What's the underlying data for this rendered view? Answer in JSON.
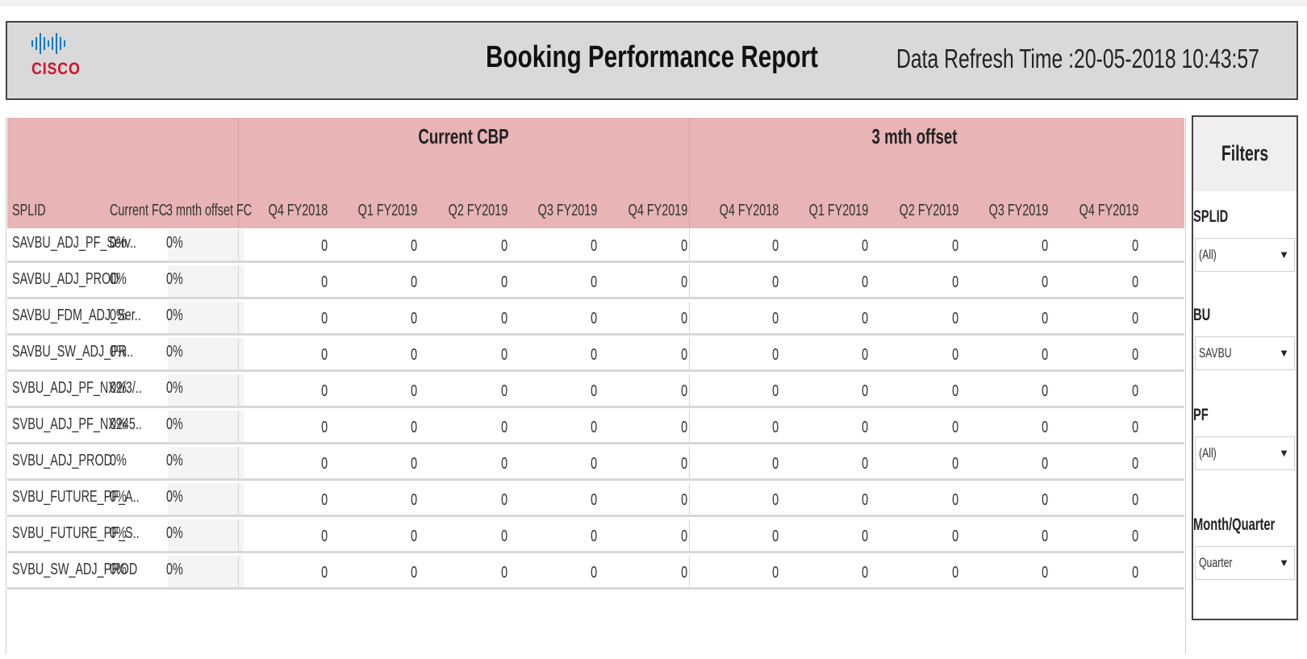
{
  "header": {
    "logo_text": "CISCO",
    "title": "Booking Performance Report",
    "refresh": "Data Refresh Time :20-05-2018 10:43:57"
  },
  "table": {
    "groups": [
      "Current CBP",
      "3 mth offset"
    ],
    "columns": [
      "SPLID",
      "Current FC",
      "3 mnth offset FC",
      "Q4 FY2018",
      "Q1 FY2019",
      "Q2 FY2019",
      "Q3 FY2019",
      "Q4 FY2019",
      "Q4 FY2018",
      "Q1 FY2019",
      "Q2 FY2019",
      "Q3 FY2019",
      "Q4 FY2019"
    ],
    "rows": [
      [
        "SAVBU_ADJ_PF_Serv..",
        "0%",
        "0%",
        "0",
        "0",
        "0",
        "0",
        "0",
        "0",
        "0",
        "0",
        "0",
        "0"
      ],
      [
        "SAVBU_ADJ_PROD",
        "0%",
        "0%",
        "0",
        "0",
        "0",
        "0",
        "0",
        "0",
        "0",
        "0",
        "0",
        "0"
      ],
      [
        "SAVBU_FDM_ADJ_Ser..",
        "0%",
        "0%",
        "0",
        "0",
        "0",
        "0",
        "0",
        "0",
        "0",
        "0",
        "0",
        "0"
      ],
      [
        "SAVBU_SW_ADJ_PR..",
        "0%",
        "0%",
        "0",
        "0",
        "0",
        "0",
        "0",
        "0",
        "0",
        "0",
        "0",
        "0"
      ],
      [
        "SVBU_ADJ_PF_NX2/3/..",
        "0%",
        "0%",
        "0",
        "0",
        "0",
        "0",
        "0",
        "0",
        "0",
        "0",
        "0",
        "0"
      ],
      [
        "SVBU_ADJ_PF_NX245..",
        "0%",
        "0%",
        "0",
        "0",
        "0",
        "0",
        "0",
        "0",
        "0",
        "0",
        "0",
        "0"
      ],
      [
        "SVBU_ADJ_PROD",
        "0%",
        "0%",
        "0",
        "0",
        "0",
        "0",
        "0",
        "0",
        "0",
        "0",
        "0",
        "0"
      ],
      [
        "SVBU_FUTURE_PF_A..",
        "0%",
        "0%",
        "0",
        "0",
        "0",
        "0",
        "0",
        "0",
        "0",
        "0",
        "0",
        "0"
      ],
      [
        "SVBU_FUTURE_PF_S..",
        "0%",
        "0%",
        "0",
        "0",
        "0",
        "0",
        "0",
        "0",
        "0",
        "0",
        "0",
        "0"
      ],
      [
        "SVBU_SW_ADJ_PROD",
        "0%",
        "0%",
        "0",
        "0",
        "0",
        "0",
        "0",
        "0",
        "0",
        "0",
        "0",
        "0"
      ]
    ]
  },
  "filters": {
    "title": "Filters",
    "items": [
      {
        "label": "SPLID",
        "value": "(All)"
      },
      {
        "label": "BU",
        "value": "SAVBU"
      },
      {
        "label": "PF",
        "value": "(All)"
      },
      {
        "label": "Month/Quarter",
        "value": "Quarter"
      }
    ]
  },
  "colors": {
    "header_bg": "#d9d9d9",
    "table_header_bg": "#e8b4b5",
    "logo_blue": "#0e78c4",
    "logo_red": "#d5102b"
  }
}
